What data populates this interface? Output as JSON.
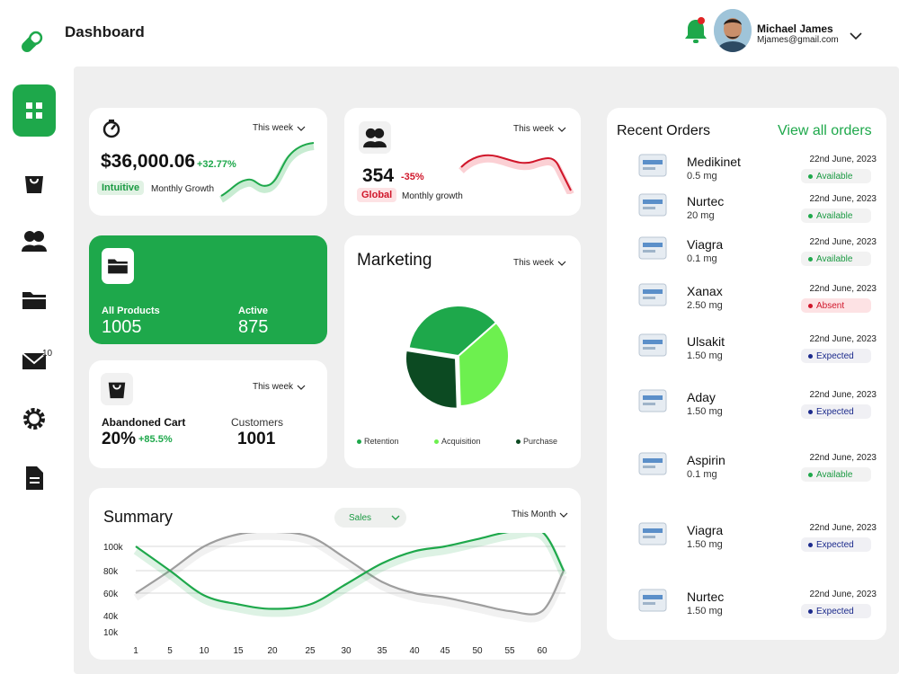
{
  "header": {
    "title": "Dashboard",
    "user": {
      "name": "Michael James",
      "email": "Mjames@gmail.com"
    }
  },
  "sidebar": {
    "items": [
      {
        "name": "dashboard",
        "icon": "grid-icon",
        "active": true
      },
      {
        "name": "orders",
        "icon": "bag-icon"
      },
      {
        "name": "customers",
        "icon": "users-icon"
      },
      {
        "name": "products",
        "icon": "folder-icon"
      },
      {
        "name": "messages",
        "icon": "mail-icon",
        "badge": "10"
      },
      {
        "name": "settings",
        "icon": "gear-icon"
      },
      {
        "name": "reports",
        "icon": "document-icon"
      }
    ]
  },
  "colors": {
    "accent": "#1ea84b",
    "danger": "#d0162a",
    "expected": "#1b2a8c"
  },
  "revenue": {
    "period": "This week",
    "value": "$36,000.06",
    "change": "+32.77%",
    "tag": "Intuitive",
    "caption": "Monthly Growth"
  },
  "users": {
    "period": "This week",
    "value": "354",
    "change": "-35%",
    "tag": "Global",
    "caption": "Monthly growth"
  },
  "products": {
    "all_label": "All Products",
    "all_value": "1005",
    "active_label": "Active",
    "active_value": "875"
  },
  "cart": {
    "period": "This week",
    "abandoned_label": "Abandoned Cart",
    "abandoned_value": "20%",
    "abandoned_change": "+85.5%",
    "customers_label": "Customers",
    "customers_value": "1001"
  },
  "marketing": {
    "title": "Marketing",
    "period": "This week",
    "legend": [
      "Retention",
      "Acquisition",
      "Purchase"
    ]
  },
  "summary": {
    "title": "Summary",
    "metric": "Sales",
    "period": "This Month"
  },
  "orders": {
    "title": "Recent Orders",
    "link": "View all orders",
    "items": [
      {
        "name": "Medikinet",
        "dose": "0.5 mg",
        "date": "22nd June, 2023",
        "status": "Available"
      },
      {
        "name": "Nurtec",
        "dose": "20 mg",
        "date": "22nd June, 2023",
        "status": "Available"
      },
      {
        "name": "Viagra",
        "dose": "0.1 mg",
        "date": "22nd June, 2023",
        "status": "Available"
      },
      {
        "name": "Xanax",
        "dose": "2.50 mg",
        "date": "22nd June, 2023",
        "status": "Absent"
      },
      {
        "name": "Ulsakit",
        "dose": "1.50 mg",
        "date": "22nd June, 2023",
        "status": "Expected"
      },
      {
        "name": "Aday",
        "dose": "1.50 mg",
        "date": "22nd June, 2023",
        "status": "Expected"
      },
      {
        "name": "Aspirin",
        "dose": "0.1 mg",
        "date": "22nd June, 2023",
        "status": "Available"
      },
      {
        "name": "Viagra",
        "dose": "1.50 mg",
        "date": "22nd June, 2023",
        "status": "Expected"
      },
      {
        "name": "Nurtec",
        "dose": "1.50 mg",
        "date": "22nd June, 2023",
        "status": "Expected"
      }
    ]
  },
  "chart_data": [
    {
      "type": "pie",
      "title": "Marketing",
      "categories": [
        "Retention",
        "Acquisition",
        "Purchase"
      ],
      "values": [
        36,
        36,
        28
      ],
      "colors": [
        "#1ea84b",
        "#6df04f",
        "#0c4a22"
      ]
    },
    {
      "type": "line",
      "title": "Summary",
      "x_ticks": [
        "1",
        "5",
        "10",
        "15",
        "20",
        "25",
        "30",
        "35",
        "40",
        "45",
        "50",
        "55",
        "60"
      ],
      "y_ticks": [
        "100k",
        "80k",
        "60k",
        "40k",
        "10k"
      ],
      "series": [
        {
          "color": "#1ea84b",
          "x": [
            1,
            5,
            10,
            15,
            20,
            25,
            30,
            35,
            40,
            45,
            50,
            55,
            60,
            63
          ],
          "y": [
            100,
            80,
            58,
            50,
            46,
            50,
            68,
            86,
            96,
            100,
            106,
            112,
            112,
            80
          ]
        },
        {
          "color": "#9e9e9e",
          "x": [
            1,
            5,
            10,
            15,
            20,
            25,
            30,
            35,
            40,
            45,
            50,
            55,
            60,
            63
          ],
          "y": [
            60,
            80,
            100,
            110,
            112,
            108,
            90,
            70,
            60,
            56,
            50,
            44,
            44,
            80
          ]
        }
      ]
    }
  ]
}
